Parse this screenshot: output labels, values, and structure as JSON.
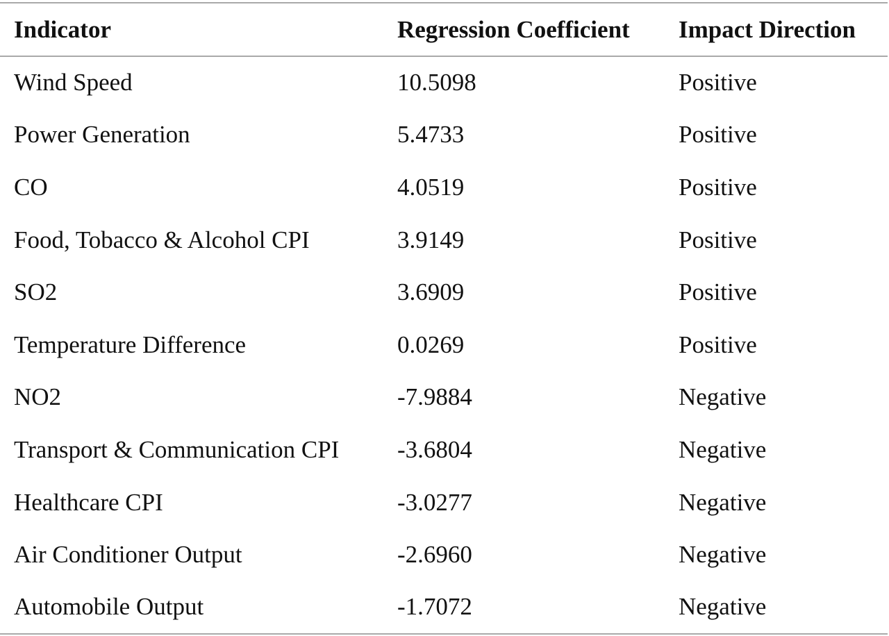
{
  "table": {
    "headers": [
      "Indicator",
      "Regression Coefficient",
      "Impact Direction"
    ],
    "rows": [
      [
        "Wind Speed",
        "10.5098",
        "Positive"
      ],
      [
        "Power Generation",
        "5.4733",
        "Positive"
      ],
      [
        "CO",
        "4.0519",
        "Positive"
      ],
      [
        "Food, Tobacco & Alcohol CPI",
        "3.9149",
        "Positive"
      ],
      [
        "SO2",
        "3.6909",
        "Positive"
      ],
      [
        "Temperature Difference",
        "0.0269",
        "Positive"
      ],
      [
        "NO2",
        "-7.9884",
        "Negative"
      ],
      [
        "Transport & Communication CPI",
        "-3.6804",
        "Negative"
      ],
      [
        "Healthcare CPI",
        "-3.0277",
        "Negative"
      ],
      [
        "Air Conditioner Output",
        "-2.6960",
        "Negative"
      ],
      [
        "Automobile Output",
        "-1.7072",
        "Negative"
      ]
    ]
  }
}
